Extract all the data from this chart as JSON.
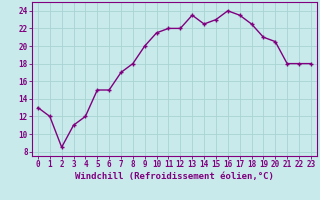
{
  "x": [
    0,
    1,
    2,
    3,
    4,
    5,
    6,
    7,
    8,
    9,
    10,
    11,
    12,
    13,
    14,
    15,
    16,
    17,
    18,
    19,
    20,
    21,
    22,
    23
  ],
  "y": [
    13,
    12,
    8.5,
    11,
    12,
    15,
    15,
    17,
    18,
    20,
    21.5,
    22,
    22,
    23.5,
    22.5,
    23,
    24,
    23.5,
    22.5,
    21,
    20.5,
    18,
    18,
    18
  ],
  "line_color": "#800080",
  "marker": "+",
  "bg_color": "#c8eaea",
  "grid_color": "#a8d4d4",
  "xlabel": "Windchill (Refroidissement éolien,°C)",
  "ylabel": "",
  "xlim": [
    -0.5,
    23.5
  ],
  "ylim": [
    7.5,
    25
  ],
  "yticks": [
    8,
    10,
    12,
    14,
    16,
    18,
    20,
    22,
    24
  ],
  "xticks": [
    0,
    1,
    2,
    3,
    4,
    5,
    6,
    7,
    8,
    9,
    10,
    11,
    12,
    13,
    14,
    15,
    16,
    17,
    18,
    19,
    20,
    21,
    22,
    23
  ],
  "axis_color": "#800080",
  "tick_label_color": "#800080",
  "xlabel_color": "#800080",
  "linewidth": 1.0,
  "markersize": 3,
  "tick_fontsize": 5.5,
  "xlabel_fontsize": 6.5
}
